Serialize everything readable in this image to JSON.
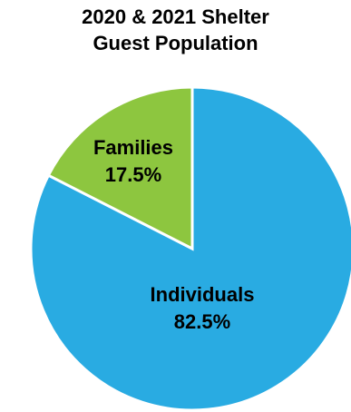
{
  "chart_data": {
    "type": "pie",
    "title_lines": [
      "2020 & 2021 Shelter",
      "Guest Population"
    ],
    "slices": [
      {
        "name": "Individuals",
        "value": 82.5,
        "label": "82.5%",
        "color": "#29abe2"
      },
      {
        "name": "Families",
        "value": 17.5,
        "label": "17.5%",
        "color": "#8dc63f"
      }
    ],
    "slice_border_color": "#ffffff",
    "legend": "none"
  }
}
